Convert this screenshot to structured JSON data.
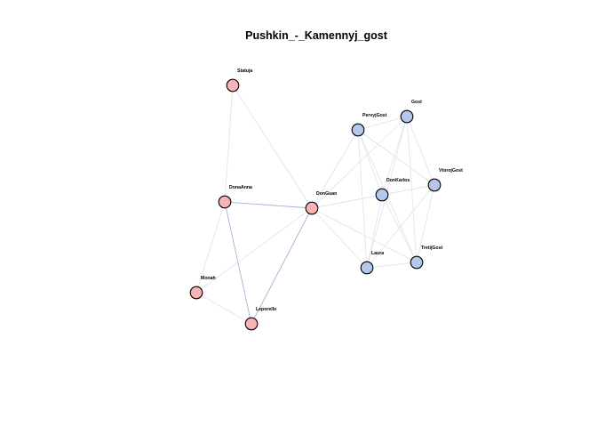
{
  "title": "Pushkin_-_Kamennyj_gost",
  "colors": {
    "group_a": "#f8b4b4",
    "group_b": "#b4c8ec",
    "edge_light": "#dde2ec",
    "edge_strong": "#9fb4d8",
    "node_stroke": "#000000"
  },
  "nodes": [
    {
      "id": "Statuja",
      "label": "Statuja",
      "group": "a"
    },
    {
      "id": "DonaAnna",
      "label": "DonaAnna",
      "group": "a"
    },
    {
      "id": "DonGuan",
      "label": "DonGuan",
      "group": "a"
    },
    {
      "id": "Monah",
      "label": "Monah",
      "group": "a"
    },
    {
      "id": "Leporello",
      "label": "Leporello",
      "group": "a"
    },
    {
      "id": "PervyjGost",
      "label": "PervyjGost",
      "group": "b"
    },
    {
      "id": "Gost",
      "label": "Gost",
      "group": "b"
    },
    {
      "id": "VtorojGost",
      "label": "VtorojGost",
      "group": "b"
    },
    {
      "id": "DonKarlos",
      "label": "DonKarlos",
      "group": "b"
    },
    {
      "id": "Laura",
      "label": "Laura",
      "group": "b"
    },
    {
      "id": "TretijGost",
      "label": "TretijGost",
      "group": "b"
    }
  ],
  "edges": [
    {
      "source": "Statuja",
      "target": "DonGuan",
      "weight": "light"
    },
    {
      "source": "Statuja",
      "target": "DonaAnna",
      "weight": "light"
    },
    {
      "source": "DonaAnna",
      "target": "DonGuan",
      "weight": "strong"
    },
    {
      "source": "DonaAnna",
      "target": "Monah",
      "weight": "light"
    },
    {
      "source": "DonaAnna",
      "target": "Leporello",
      "weight": "strong"
    },
    {
      "source": "Monah",
      "target": "Leporello",
      "weight": "light"
    },
    {
      "source": "Monah",
      "target": "DonGuan",
      "weight": "light"
    },
    {
      "source": "Leporello",
      "target": "DonGuan",
      "weight": "strong"
    },
    {
      "source": "DonGuan",
      "target": "PervyjGost",
      "weight": "light"
    },
    {
      "source": "DonGuan",
      "target": "Gost",
      "weight": "light"
    },
    {
      "source": "DonGuan",
      "target": "DonKarlos",
      "weight": "light"
    },
    {
      "source": "DonGuan",
      "target": "VtorojGost",
      "weight": "light"
    },
    {
      "source": "DonGuan",
      "target": "Laura",
      "weight": "light"
    },
    {
      "source": "DonGuan",
      "target": "TretijGost",
      "weight": "light"
    },
    {
      "source": "PervyjGost",
      "target": "Gost",
      "weight": "light"
    },
    {
      "source": "PervyjGost",
      "target": "DonKarlos",
      "weight": "light"
    },
    {
      "source": "PervyjGost",
      "target": "VtorojGost",
      "weight": "light"
    },
    {
      "source": "PervyjGost",
      "target": "Laura",
      "weight": "light"
    },
    {
      "source": "PervyjGost",
      "target": "TretijGost",
      "weight": "light"
    },
    {
      "source": "Gost",
      "target": "DonKarlos",
      "weight": "light"
    },
    {
      "source": "Gost",
      "target": "VtorojGost",
      "weight": "light"
    },
    {
      "source": "Gost",
      "target": "Laura",
      "weight": "light"
    },
    {
      "source": "Gost",
      "target": "TretijGost",
      "weight": "light"
    },
    {
      "source": "DonKarlos",
      "target": "VtorojGost",
      "weight": "light"
    },
    {
      "source": "DonKarlos",
      "target": "Laura",
      "weight": "light"
    },
    {
      "source": "DonKarlos",
      "target": "TretijGost",
      "weight": "light"
    },
    {
      "source": "VtorojGost",
      "target": "Laura",
      "weight": "light"
    },
    {
      "source": "VtorojGost",
      "target": "TretijGost",
      "weight": "light"
    },
    {
      "source": "Laura",
      "target": "TretijGost",
      "weight": "light"
    }
  ]
}
